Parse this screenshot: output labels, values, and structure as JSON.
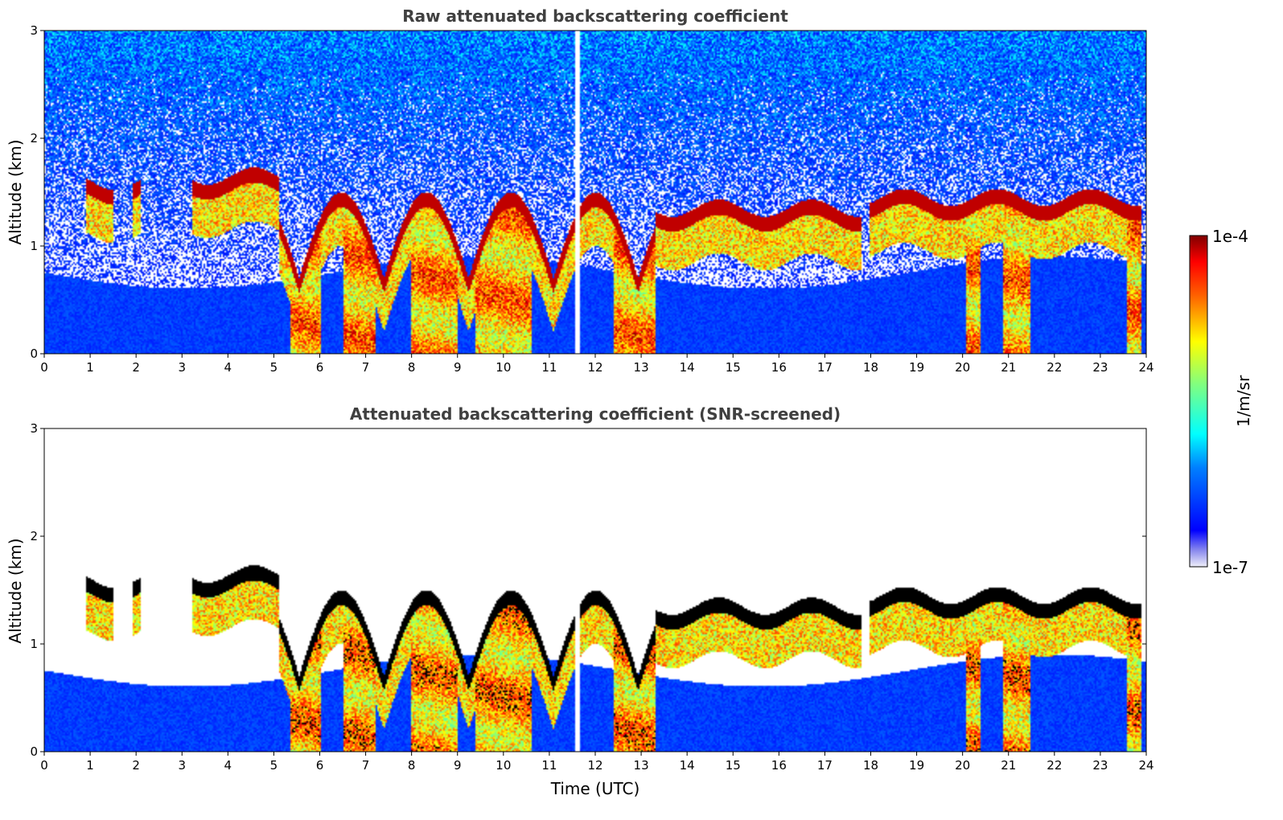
{
  "chart_data": [
    {
      "type": "heatmap",
      "title": "Raw attenuated backscattering coefficient",
      "xlabel": "",
      "ylabel": "Altitude (km)",
      "xlim": [
        0,
        24
      ],
      "ylim": [
        0,
        3
      ],
      "xticks": [
        "0",
        "1",
        "2",
        "3",
        "4",
        "5",
        "6",
        "7",
        "8",
        "9",
        "10",
        "11",
        "12",
        "13",
        "14",
        "15",
        "16",
        "17",
        "18",
        "19",
        "20",
        "21",
        "22",
        "23",
        "24"
      ],
      "yticks": [
        "0",
        "1",
        "2",
        "3"
      ],
      "screened": false,
      "cloud_layers": [
        {
          "t0": 0.9,
          "t1": 1.5,
          "alt": 1.6
        },
        {
          "t0": 1.9,
          "t1": 2.1,
          "alt": 1.6
        },
        {
          "t0": 3.2,
          "t1": 5.1,
          "alt": 1.65
        },
        {
          "t0": 13.3,
          "t1": 17.8,
          "alt": 1.35
        },
        {
          "t0": 18.0,
          "t1": 19.3,
          "alt": 1.45
        },
        {
          "t0": 19.3,
          "t1": 23.9,
          "alt": 1.45
        }
      ],
      "precipitation_columns": [
        {
          "t0": 5.35,
          "t1": 6.0
        },
        {
          "t0": 6.5,
          "t1": 7.2
        },
        {
          "t0": 8.0,
          "t1": 9.0
        },
        {
          "t0": 9.4,
          "t1": 10.6
        },
        {
          "t0": 12.4,
          "t1": 13.3
        },
        {
          "t0": 20.1,
          "t1": 20.4
        },
        {
          "t0": 20.9,
          "t1": 21.5
        },
        {
          "t0": 23.6,
          "t1": 23.9
        }
      ]
    },
    {
      "type": "heatmap",
      "title": "Attenuated backscattering coefficient (SNR-screened)",
      "xlabel": "Time (UTC)",
      "ylabel": "Altitude (km)",
      "xlim": [
        0,
        24
      ],
      "ylim": [
        0,
        3
      ],
      "xticks": [
        "0",
        "1",
        "2",
        "3",
        "4",
        "5",
        "6",
        "7",
        "8",
        "9",
        "10",
        "11",
        "12",
        "13",
        "14",
        "15",
        "16",
        "17",
        "18",
        "19",
        "20",
        "21",
        "22",
        "23",
        "24"
      ],
      "yticks": [
        "0",
        "1",
        "2",
        "3"
      ],
      "screened": true
    }
  ],
  "colorbar": {
    "max_label": "1e-4",
    "min_label": "1e-7",
    "unit_label": "1/m/sr",
    "colormap": "jet",
    "scale": "log"
  }
}
